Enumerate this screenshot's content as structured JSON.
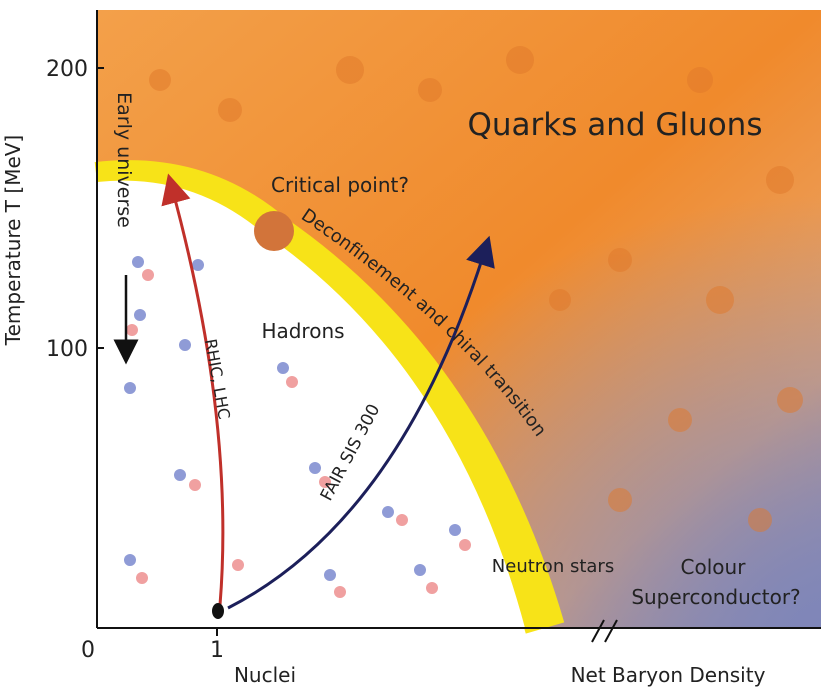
{
  "axes": {
    "y_title": "Temperature T [MeV]",
    "y_ticks": [
      "200",
      "100"
    ],
    "origin": "0",
    "x_tick": "1",
    "x_left_label": "Nuclei",
    "x_right_label": "Net Baryon Density"
  },
  "regions": {
    "qgp": "Quarks and Gluons",
    "hadrons": "Hadrons",
    "neutron_stars": "Neutron stars",
    "colour_1": "Colour",
    "colour_2": "Superconductor?"
  },
  "annotations": {
    "critical_point": "Critical point?",
    "transition": "Deconfinement and chiral transition",
    "early_universe": "Early universe",
    "rhic": "RHIC, LHC",
    "fair": "FAIR SIS 300"
  }
}
